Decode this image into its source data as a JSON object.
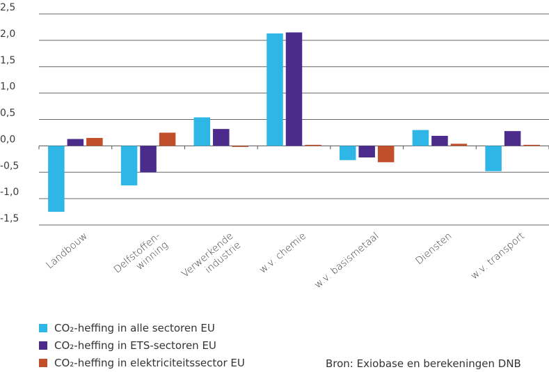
{
  "chart_data": {
    "type": "bar",
    "categories": [
      [
        "Landbouw"
      ],
      [
        "Delfstoffen-",
        "winning"
      ],
      [
        "Verwerkende",
        "industrie"
      ],
      [
        "w.v. chemie"
      ],
      [
        "w.v. basismetaal"
      ],
      [
        "Diensten"
      ],
      [
        "w.v. transport"
      ]
    ],
    "series": [
      {
        "name": "CO₂-heffing in alle sectoren EU",
        "color": "#2eb7e6",
        "values": [
          -1.25,
          -0.75,
          0.54,
          2.13,
          -0.27,
          0.3,
          -0.48
        ]
      },
      {
        "name": "CO₂-heffing in ETS-sectoren EU",
        "color": "#4b2c8c",
        "values": [
          0.13,
          -0.5,
          0.32,
          2.15,
          -0.22,
          0.19,
          0.28
        ]
      },
      {
        "name": "CO₂-heffing in elektriciteitssector EU",
        "color": "#c1502a",
        "values": [
          0.15,
          0.25,
          -0.02,
          0.01,
          -0.31,
          0.04,
          0.01
        ]
      }
    ],
    "ylim": [
      -1.5,
      2.5
    ],
    "yticks": [
      "2,5",
      "2,0",
      "1,5",
      "1,0",
      "0,5",
      "0,0",
      "-0,5",
      "-1,0",
      "-1,5"
    ],
    "ytick_values": [
      2.5,
      2.0,
      1.5,
      1.0,
      0.5,
      0.0,
      -0.5,
      -1.0,
      -1.5
    ],
    "grid": true,
    "legend_position": "bottom-left"
  },
  "source": "Bron: Exiobase en berekeningen DNB"
}
